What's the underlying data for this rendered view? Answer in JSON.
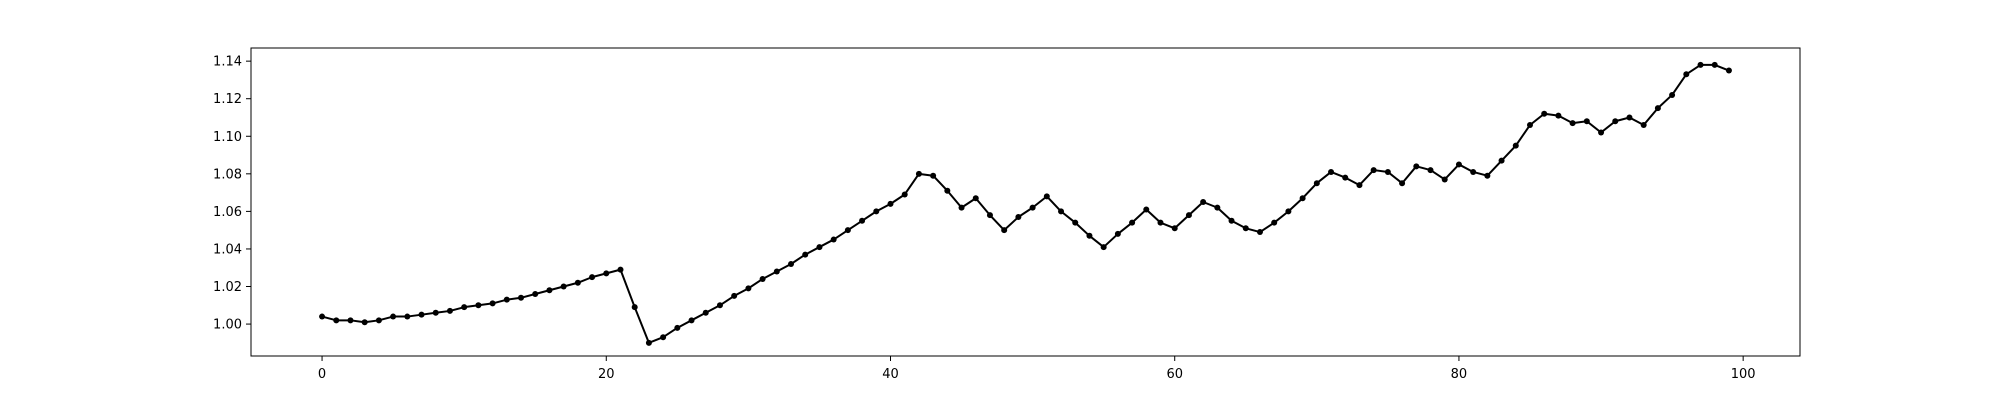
{
  "chart_data": {
    "type": "line",
    "title": "",
    "xlabel": "",
    "ylabel": "",
    "xlim": [
      -5,
      104
    ],
    "ylim": [
      0.983,
      1.147
    ],
    "x_ticks": [
      0,
      20,
      40,
      60,
      80,
      100
    ],
    "y_ticks": [
      1.0,
      1.02,
      1.04,
      1.06,
      1.08,
      1.1,
      1.12,
      1.14
    ],
    "grid": false,
    "legend": "none",
    "series": [
      {
        "color": "#000000",
        "marker": "circle",
        "x": [
          0,
          1,
          2,
          3,
          4,
          5,
          6,
          7,
          8,
          9,
          10,
          11,
          12,
          13,
          14,
          15,
          16,
          17,
          18,
          19,
          20,
          21,
          22,
          23,
          24,
          25,
          26,
          27,
          28,
          29,
          30,
          31,
          32,
          33,
          34,
          35,
          36,
          37,
          38,
          39,
          40,
          41,
          42,
          43,
          44,
          45,
          46,
          47,
          48,
          49,
          50,
          51,
          52,
          53,
          54,
          55,
          56,
          57,
          58,
          59,
          60,
          61,
          62,
          63,
          64,
          65,
          66,
          67,
          68,
          69,
          70,
          71,
          72,
          73,
          74,
          75,
          76,
          77,
          78,
          79,
          80,
          81,
          82,
          83,
          84,
          85,
          86,
          87,
          88,
          89,
          90,
          91,
          92,
          93,
          94,
          95,
          96,
          97,
          98,
          99
        ],
        "values": [
          1.004,
          1.002,
          1.002,
          1.001,
          1.002,
          1.004,
          1.004,
          1.005,
          1.006,
          1.007,
          1.009,
          1.01,
          1.011,
          1.013,
          1.014,
          1.016,
          1.018,
          1.02,
          1.022,
          1.025,
          1.027,
          1.029,
          1.009,
          0.99,
          0.993,
          0.998,
          1.002,
          1.006,
          1.01,
          1.015,
          1.019,
          1.024,
          1.028,
          1.032,
          1.037,
          1.041,
          1.045,
          1.05,
          1.055,
          1.06,
          1.064,
          1.069,
          1.08,
          1.079,
          1.071,
          1.062,
          1.067,
          1.058,
          1.05,
          1.057,
          1.062,
          1.068,
          1.06,
          1.054,
          1.047,
          1.041,
          1.048,
          1.054,
          1.061,
          1.054,
          1.051,
          1.058,
          1.065,
          1.062,
          1.055,
          1.051,
          1.049,
          1.054,
          1.06,
          1.067,
          1.075,
          1.081,
          1.078,
          1.074,
          1.082,
          1.081,
          1.075,
          1.084,
          1.082,
          1.077,
          1.085,
          1.081,
          1.079,
          1.087,
          1.095,
          1.106,
          1.112,
          1.111,
          1.107,
          1.108,
          1.102,
          1.108,
          1.11,
          1.106,
          1.115,
          1.122,
          1.133,
          1.138,
          1.138,
          1.135
        ]
      }
    ]
  }
}
